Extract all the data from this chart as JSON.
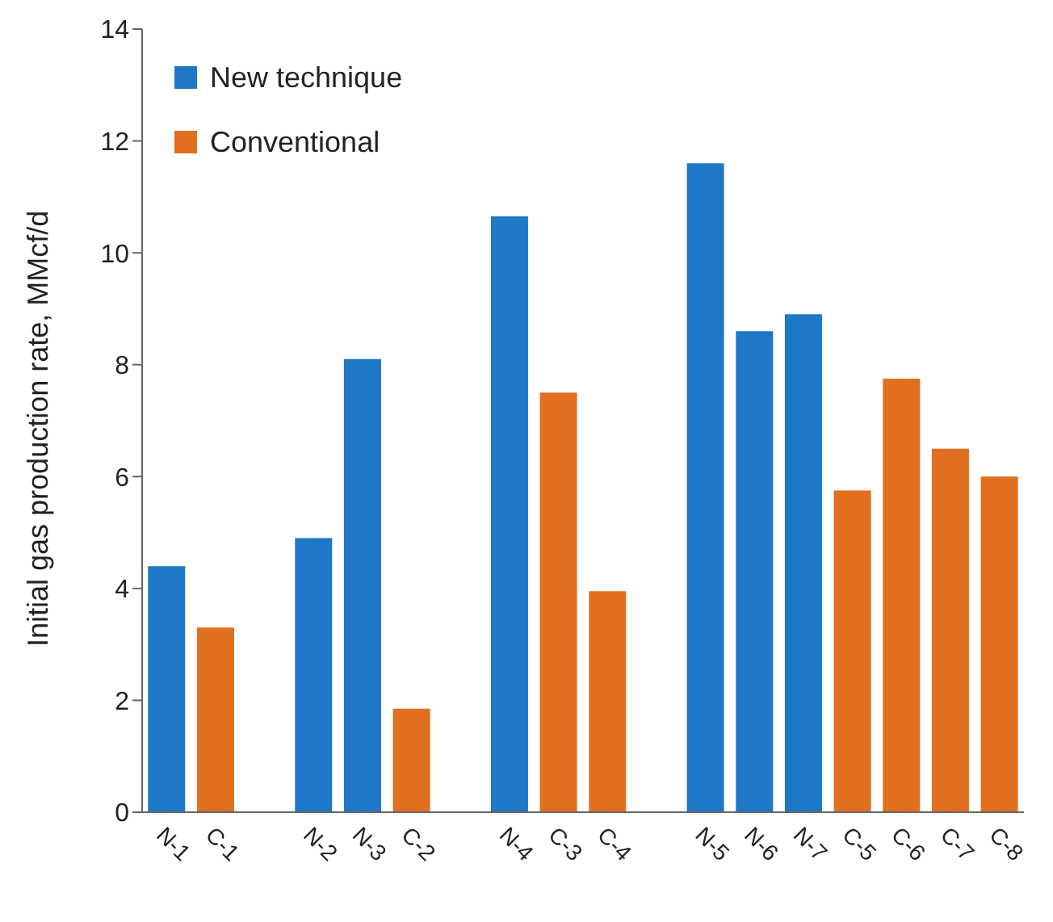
{
  "chart_data": {
    "type": "bar",
    "ylabel": "Initial gas production rate, MMcf/d",
    "categories": [
      "N-1",
      "C-1",
      null,
      "N-2",
      "N-3",
      "C-2",
      null,
      "N-4",
      "C-3",
      "C-4",
      null,
      "N-5",
      "N-6",
      "N-7",
      "C-5",
      "C-6",
      "C-7",
      "C-8"
    ],
    "series": [
      {
        "name": "New technique",
        "color": "#1f77c8",
        "values": [
          4.4,
          null,
          null,
          4.9,
          8.1,
          null,
          null,
          10.65,
          null,
          null,
          null,
          11.6,
          8.6,
          8.9,
          null,
          null,
          null,
          null
        ]
      },
      {
        "name": "Conventional",
        "color": "#e07020",
        "values": [
          null,
          3.3,
          null,
          null,
          null,
          1.85,
          null,
          null,
          7.5,
          3.95,
          null,
          null,
          null,
          null,
          5.75,
          7.75,
          6.5,
          6.0
        ]
      }
    ],
    "ylim": [
      0,
      14
    ],
    "yticks": [
      0,
      2,
      4,
      6,
      8,
      10,
      12,
      14
    ],
    "grid": false,
    "legend": "top left"
  }
}
